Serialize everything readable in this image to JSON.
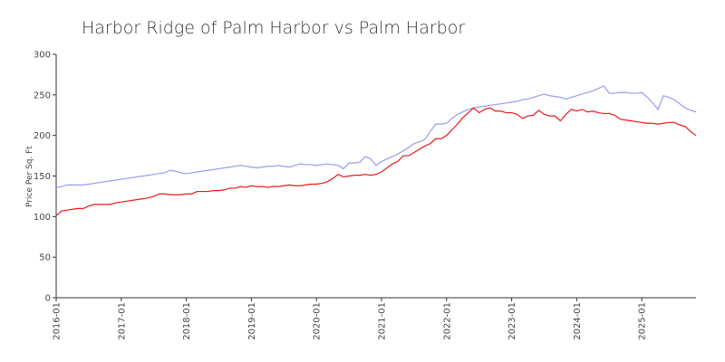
{
  "chart_data": {
    "type": "line",
    "title": "Harbor Ridge of Palm Harbor vs Palm Harbor",
    "y_label": "Price Per Sq. Ft",
    "x": [
      "2016-01",
      "2016-02",
      "2016-03",
      "2016-04",
      "2016-05",
      "2016-06",
      "2016-07",
      "2016-08",
      "2016-09",
      "2016-10",
      "2016-11",
      "2016-12",
      "2017-01",
      "2017-02",
      "2017-03",
      "2017-04",
      "2017-05",
      "2017-06",
      "2017-07",
      "2017-08",
      "2017-09",
      "2017-10",
      "2017-11",
      "2017-12",
      "2018-01",
      "2018-02",
      "2018-03",
      "2018-04",
      "2018-05",
      "2018-06",
      "2018-07",
      "2018-08",
      "2018-09",
      "2018-10",
      "2018-11",
      "2018-12",
      "2019-01",
      "2019-02",
      "2019-03",
      "2019-04",
      "2019-05",
      "2019-06",
      "2019-07",
      "2019-08",
      "2019-09",
      "2019-10",
      "2019-11",
      "2019-12",
      "2020-01",
      "2020-02",
      "2020-03",
      "2020-04",
      "2020-05",
      "2020-06",
      "2020-07",
      "2020-08",
      "2020-09",
      "2020-10",
      "2020-11",
      "2020-12",
      "2021-01",
      "2021-02",
      "2021-03",
      "2021-04",
      "2021-05",
      "2021-06",
      "2021-07",
      "2021-08",
      "2021-09",
      "2021-10",
      "2021-11",
      "2021-12",
      "2022-01",
      "2022-02",
      "2022-03",
      "2022-04",
      "2022-05",
      "2022-06",
      "2022-07",
      "2022-08",
      "2022-09",
      "2022-10",
      "2022-11",
      "2022-12",
      "2023-01",
      "2023-02",
      "2023-03",
      "2023-04",
      "2023-05",
      "2023-06",
      "2023-07",
      "2023-08",
      "2023-09",
      "2023-10",
      "2023-11",
      "2023-12",
      "2024-01",
      "2024-02",
      "2024-03",
      "2024-04",
      "2024-05",
      "2024-06",
      "2024-07",
      "2024-08",
      "2024-09",
      "2024-10",
      "2024-11",
      "2024-12",
      "2025-01",
      "2025-02",
      "2025-03",
      "2025-04",
      "2025-05",
      "2025-06",
      "2025-07",
      "2025-08",
      "2025-09",
      "2025-10",
      "2025-11"
    ],
    "series": [
      {
        "color": "#9a9af2",
        "values": [
          136,
          137,
          139,
          139,
          139,
          139,
          140,
          141,
          142,
          143,
          144,
          145,
          146,
          147,
          148,
          149,
          150,
          151,
          152,
          153,
          154,
          157,
          156,
          154,
          153,
          154,
          155,
          156,
          157,
          158,
          159,
          160,
          161,
          162,
          163,
          162,
          161,
          160,
          161,
          162,
          162,
          163,
          162,
          161,
          163,
          165,
          164,
          164,
          163,
          164,
          165,
          164,
          163,
          159,
          166,
          166,
          167,
          174,
          171,
          163,
          168,
          171,
          174,
          177,
          181,
          185,
          190,
          192,
          195,
          205,
          214,
          214,
          215,
          221,
          226,
          229,
          232,
          234,
          235,
          236,
          237,
          238,
          239,
          240,
          241,
          242,
          244,
          245,
          247,
          249,
          251,
          249,
          248,
          247,
          245,
          247,
          249,
          251,
          253,
          255,
          258,
          261,
          252,
          252,
          253,
          253,
          252,
          252,
          253,
          247,
          240,
          232,
          249,
          247,
          244,
          239,
          234,
          231,
          229
        ]
      },
      {
        "color": "#e8191b",
        "values": [
          101,
          107,
          108,
          109,
          110,
          110,
          113,
          115,
          115,
          115,
          115,
          117,
          118,
          119,
          120,
          121,
          122,
          123,
          125,
          128,
          128,
          127,
          127,
          127,
          128,
          128,
          131,
          131,
          131,
          132,
          132,
          133,
          135,
          135,
          137,
          136,
          138,
          137,
          137,
          136,
          137,
          137,
          138,
          139,
          138,
          138,
          139,
          140,
          140,
          141,
          143,
          147,
          152,
          149,
          150,
          151,
          151,
          152,
          151,
          152,
          155,
          160,
          165,
          168,
          175,
          175,
          179,
          183,
          187,
          190,
          196,
          196,
          200,
          207,
          214,
          222,
          228,
          234,
          228,
          232,
          234,
          230,
          230,
          228,
          228,
          226,
          221,
          224,
          225,
          231,
          226,
          224,
          224,
          218,
          226,
          232,
          230,
          232,
          229,
          230,
          228,
          227,
          227,
          225,
          220,
          219,
          218,
          217,
          216,
          215,
          215,
          214,
          215,
          216,
          216,
          213,
          211,
          205,
          200
        ]
      }
    ],
    "xticks": [
      "2016-01",
      "2017-01",
      "2018-01",
      "2019-01",
      "2020-01",
      "2021-01",
      "2022-01",
      "2023-01",
      "2024-01",
      "2025-01"
    ],
    "ylim": [
      0,
      300
    ],
    "yticks": [
      0,
      50,
      100,
      150,
      200,
      250,
      300
    ],
    "grid": false
  }
}
